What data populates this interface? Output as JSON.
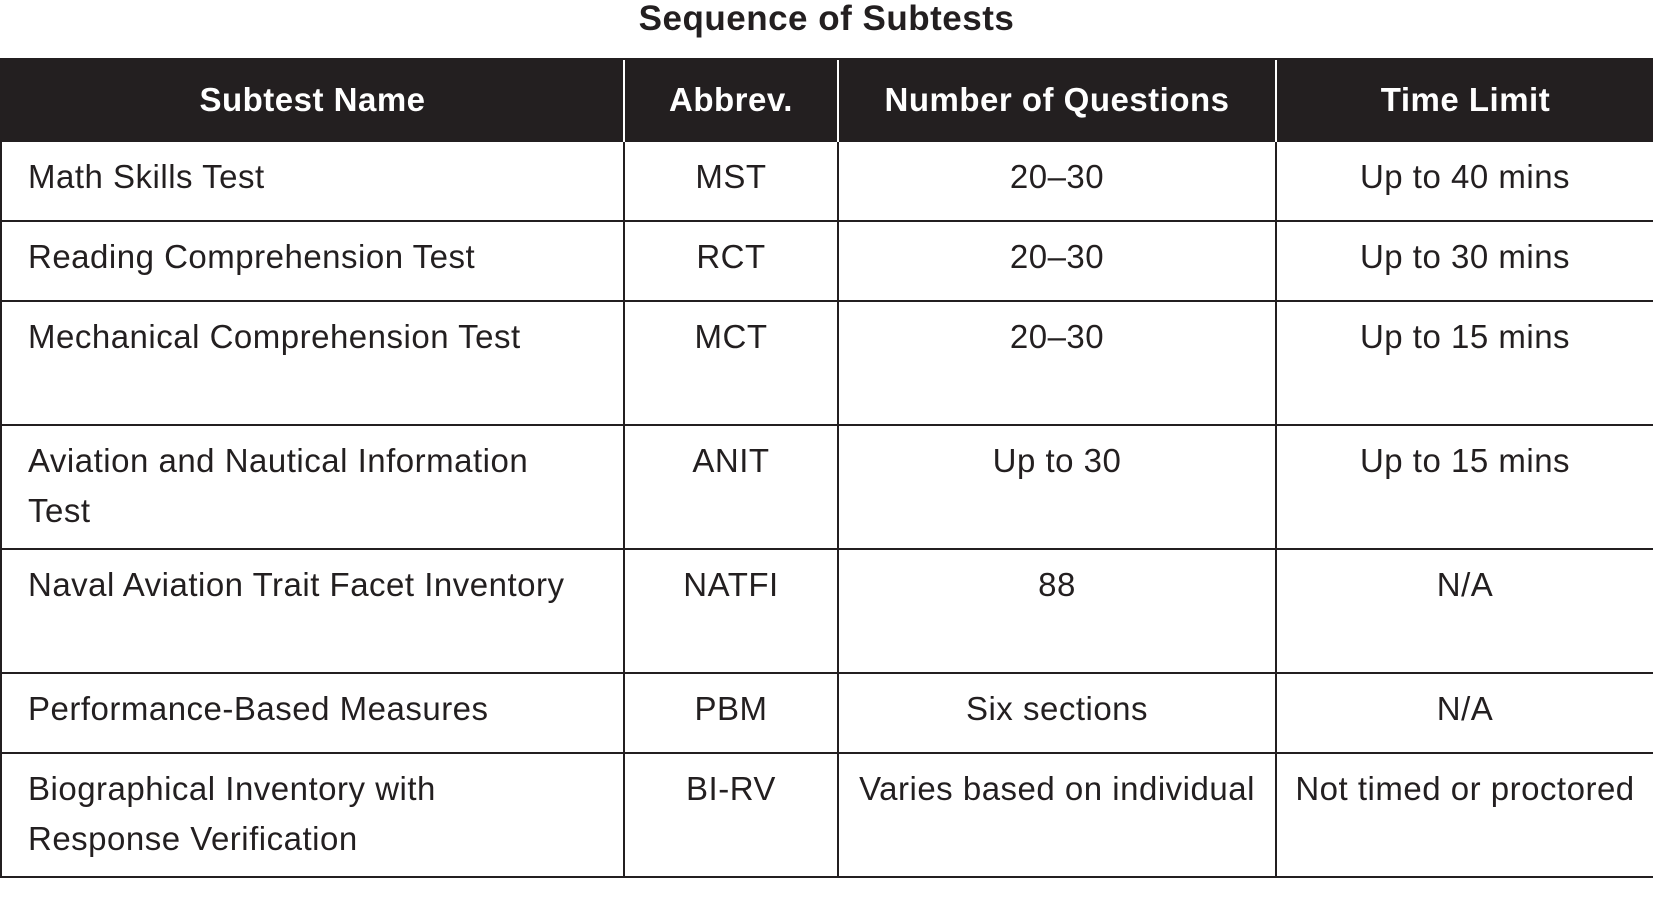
{
  "title": "Sequence of Subtests",
  "table": {
    "headers": [
      "Subtest Name",
      "Abbrev.",
      "Number of Questions",
      "Time Limit"
    ],
    "rows": [
      {
        "name": "Math Skills Test",
        "abbrev": "MST",
        "questions": "20–30",
        "time": "Up to 40 mins"
      },
      {
        "name": "Reading Comprehension Test",
        "abbrev": "RCT",
        "questions": "20–30",
        "time": "Up to 30 mins"
      },
      {
        "name": "Mechanical Comprehension Test",
        "abbrev": "MCT",
        "questions": "20–30",
        "time": "Up to 15 mins"
      },
      {
        "name": "Aviation and Nautical Information Test",
        "abbrev": "ANIT",
        "questions": "Up to 30",
        "time": "Up to 15 mins"
      },
      {
        "name": "Naval Aviation Trait Facet Inventory",
        "abbrev": "NATFI",
        "questions": "88",
        "time": "N/A"
      },
      {
        "name": "Performance-Based Measures",
        "abbrev": "PBM",
        "questions": "Six sections",
        "time": "N/A"
      },
      {
        "name": "Biographical Inventory with Response Verification",
        "abbrev": "BI-RV",
        "questions": "Varies based on individual",
        "time": "Not timed or proctored"
      }
    ]
  }
}
